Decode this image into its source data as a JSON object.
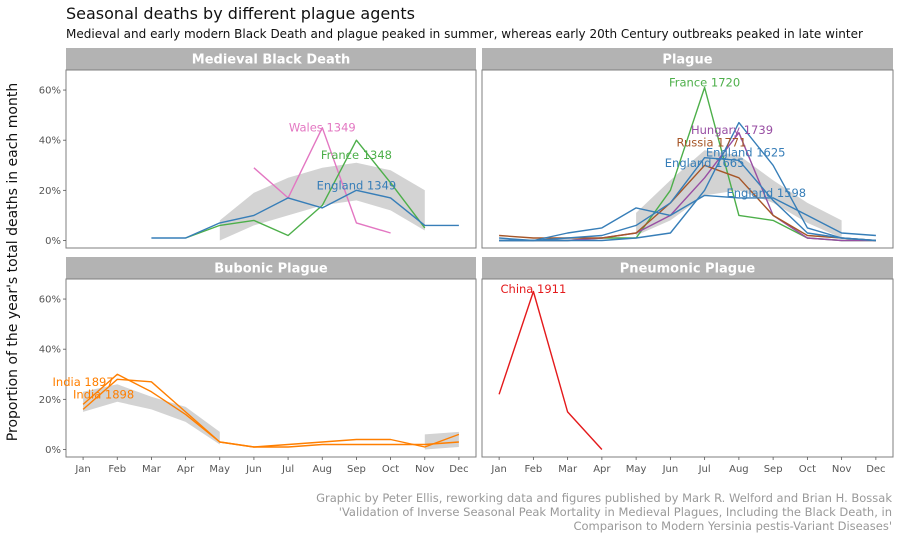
{
  "title": "Seasonal deaths by different plague agents",
  "subtitle": "Medieval and early modern Black Death and plague peaked in summer, whereas early 20th Century outbreaks peaked in late winter",
  "ylabel": "Proportion of the year's total deaths in each month",
  "caption": [
    "Graphic by Peter Ellis, reworking data and figures published by Mark R. Welford and Brian H. Bossak",
    "'Validation of Inverse Seasonal Peak Mortality in Medieval Plagues, Including the Black Death, in",
    "Comparison to Modern Yersinia pestis-Variant Diseases'"
  ],
  "colors": {
    "strip": "#b3b3b3",
    "ribbon": "#d3d3d3",
    "panel_border": "#7f7f7f"
  },
  "chart_data": {
    "type": "line",
    "x_tick_labels": [
      "Jan",
      "Feb",
      "Mar",
      "Apr",
      "May",
      "Jun",
      "Jul",
      "Aug",
      "Sep",
      "Oct",
      "Nov",
      "Dec"
    ],
    "y_ticks": [
      0,
      20,
      40,
      60
    ],
    "y_tick_labels": [
      "0%",
      "20%",
      "40%",
      "60%"
    ],
    "ylim": [
      -3,
      68
    ],
    "xlim": [
      0.5,
      12.5
    ],
    "grid": false,
    "panels": [
      {
        "title": "Medieval Black Death",
        "ribbons": [
          {
            "x": [
              5,
              6,
              7,
              8,
              9,
              10,
              11
            ],
            "low": [
              0,
              6,
              10,
              14,
              16,
              12,
              4
            ],
            "high": [
              8,
              19,
              25,
              29,
              31,
              28,
              20
            ]
          }
        ],
        "series": [
          {
            "name": "Wales 1349",
            "color": "#e377c2",
            "x": [
              6,
              7,
              8,
              9,
              10
            ],
            "values": [
              29,
              17,
              45,
              7,
              3
            ],
            "label_at": [
              8,
              45
            ]
          },
          {
            "name": "France 1348",
            "color": "#4daf4a",
            "x": [
              4,
              5,
              6,
              7,
              8,
              9,
              10,
              11
            ],
            "values": [
              1,
              6,
              8,
              2,
              14,
              40,
              23,
              5
            ],
            "label_at": [
              9,
              34
            ]
          },
          {
            "name": "England 1349",
            "color": "#377eb8",
            "x": [
              3,
              4,
              5,
              6,
              7,
              8,
              9,
              10,
              11,
              12
            ],
            "values": [
              1,
              1,
              7,
              10,
              17,
              13,
              20,
              17,
              6,
              6
            ],
            "label_at": [
              9,
              22
            ]
          }
        ]
      },
      {
        "title": "Plague",
        "ribbons": [
          {
            "x": [
              5,
              6,
              7,
              8,
              9,
              10,
              11
            ],
            "low": [
              2,
              8,
              18,
              20,
              15,
              7,
              1
            ],
            "high": [
              11,
              24,
              36,
              34,
              24,
              15,
              8
            ]
          }
        ],
        "series": [
          {
            "name": "France 1720",
            "color": "#4daf4a",
            "x": [
              1,
              2,
              3,
              4,
              5,
              6,
              7,
              8,
              9,
              10,
              11,
              12
            ],
            "values": [
              0,
              0,
              0,
              1,
              1,
              20,
              61,
              10,
              8,
              1,
              0,
              0
            ],
            "label_at": [
              7,
              63
            ]
          },
          {
            "name": "Hungary 1739",
            "color": "#984ea3",
            "x": [
              1,
              2,
              3,
              4,
              5,
              6,
              7,
              8,
              9,
              10,
              11,
              12
            ],
            "values": [
              0,
              0,
              0,
              1,
              3,
              10,
              25,
              43,
              10,
              1,
              0,
              0
            ],
            "label_at": [
              7.8,
              44
            ]
          },
          {
            "name": "Russia 1771",
            "color": "#a65628",
            "x": [
              1,
              2,
              3,
              4,
              5,
              6,
              7,
              8,
              9,
              10,
              11,
              12
            ],
            "values": [
              2,
              1,
              1,
              1,
              3,
              15,
              30,
              25,
              10,
              2,
              1,
              0
            ],
            "label_at": [
              7.2,
              39
            ]
          },
          {
            "name": "England 1625",
            "color": "#377eb8",
            "x": [
              1,
              2,
              3,
              4,
              5,
              6,
              7,
              8,
              9,
              10,
              11,
              12
            ],
            "values": [
              0,
              0,
              1,
              2,
              6,
              15,
              33,
              32,
              16,
              3,
              1,
              0
            ],
            "label_at": [
              8.2,
              35
            ]
          },
          {
            "name": "England 1665",
            "color": "#377eb8",
            "x": [
              1,
              2,
              3,
              4,
              5,
              6,
              7,
              8,
              9,
              10,
              11,
              12
            ],
            "values": [
              0,
              0,
              0,
              0,
              1,
              3,
              20,
              47,
              30,
              5,
              1,
              0
            ],
            "label_at": [
              7,
              31
            ]
          },
          {
            "name": "England 1598",
            "color": "#377eb8",
            "x": [
              1,
              2,
              3,
              4,
              5,
              6,
              7,
              8,
              9,
              10,
              11,
              12
            ],
            "values": [
              1,
              0,
              3,
              5,
              13,
              10,
              18,
              17,
              17,
              10,
              3,
              2
            ],
            "label_at": [
              8.8,
              19
            ]
          }
        ]
      },
      {
        "title": "Bubonic Plague",
        "ribbons": [
          {
            "x": [
              1,
              2,
              3,
              4,
              5
            ],
            "low": [
              15,
              19,
              16,
              11,
              2
            ],
            "high": [
              23,
              26,
              21,
              17,
              7
            ]
          },
          {
            "x": [
              11,
              12
            ],
            "low": [
              0,
              1
            ],
            "high": [
              6,
              7
            ]
          }
        ],
        "series": [
          {
            "name": "India 1897",
            "color": "#ff7f00",
            "x": [
              1,
              2,
              3,
              4,
              5,
              6,
              7,
              8,
              9,
              10,
              11,
              12
            ],
            "values": [
              16,
              28,
              27,
              15,
              3,
              1,
              1,
              2,
              2,
              2,
              2,
              3
            ],
            "label_at": [
              1,
              27
            ]
          },
          {
            "name": "India 1898",
            "color": "#ff7f00",
            "x": [
              1,
              2,
              3,
              4,
              5,
              6,
              7,
              8,
              9,
              10,
              11,
              12
            ],
            "values": [
              18,
              30,
              23,
              14,
              3,
              1,
              2,
              3,
              4,
              4,
              1,
              6
            ],
            "label_at": [
              1.6,
              22
            ]
          }
        ]
      },
      {
        "title": "Pneumonic Plague",
        "ribbons": [],
        "series": [
          {
            "name": "China 1911",
            "color": "#e41a1c",
            "x": [
              1,
              2,
              3,
              4
            ],
            "values": [
              22,
              63,
              15,
              0
            ],
            "label_at": [
              2,
              64
            ]
          }
        ]
      }
    ]
  }
}
